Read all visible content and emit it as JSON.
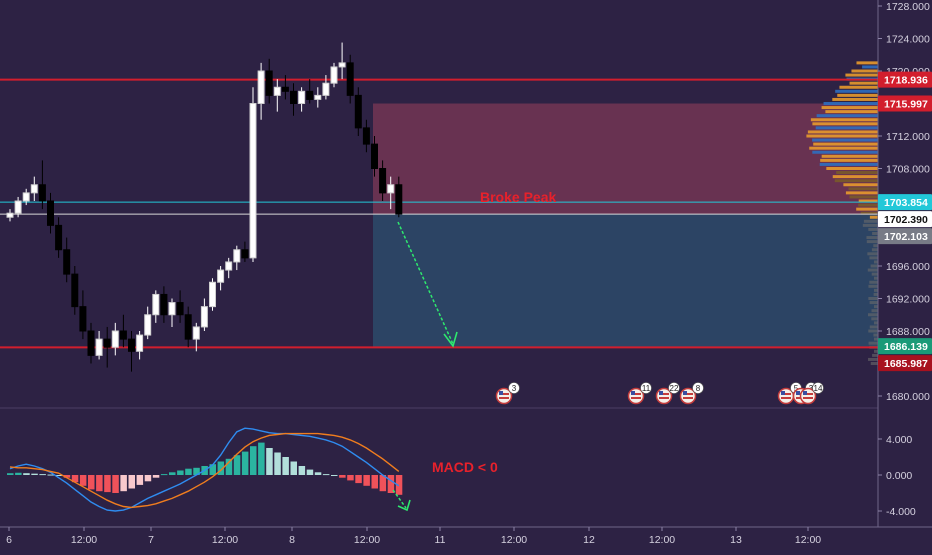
{
  "colors": {
    "background": "#2d2244",
    "up": "#ffffff",
    "down": "#000000",
    "red_line": "#d21e2d",
    "cyan_line": "#22c8d8",
    "sell_zone": "#6b3452",
    "target_zone": "#2c4766",
    "arrow": "#2ee86e",
    "annotation": "#e8212b",
    "macd_line": "#2f8cf0",
    "signal_line": "#f07d1e",
    "hist_pos_strong": "#2bb4a0",
    "hist_pos_weak": "#b2dfdb",
    "hist_neg_strong": "#f0525a",
    "hist_neg_weak": "#f8c8cc",
    "volume_buy": "#2f6ec0",
    "volume_sell": "#e89a2c",
    "volume_dim": "#6a6a6a"
  },
  "chart_data": [
    {
      "type": "candlestick",
      "panel": "price",
      "y_axis_ticks": [
        "1728.000",
        "1724.000",
        "1720.000",
        "1716.000",
        "1712.000",
        "1708.000",
        "1704.000",
        "1700.000",
        "1696.000",
        "1692.000",
        "1688.000",
        "1684.000",
        "1680.000"
      ],
      "ylim": [
        1678.8,
        1728.8
      ],
      "x_axis_ticks": [
        "6",
        "12:00",
        "7",
        "12:00",
        "8",
        "12:00",
        "11",
        "12:00",
        "12",
        "12:00",
        "13",
        "12:00"
      ],
      "price_labels": [
        {
          "value": 1718.936,
          "text": "1718.936",
          "color": "#d21e2d"
        },
        {
          "value": 1715.997,
          "text": "1715.997",
          "color": "#d21e2d"
        },
        {
          "value": 1703.854,
          "text": "1703.854",
          "color": "#22c8d8"
        },
        {
          "value": 1702.39,
          "text": "1702.390",
          "color": "#ffffff"
        },
        {
          "value": 1702.103,
          "text": "1702.103",
          "color": "#787b86"
        },
        {
          "value": 1686.139,
          "text": "1686.139",
          "color": "#1a9a78"
        },
        {
          "value": 1685.987,
          "text": "1685.987",
          "color": "#a8111f"
        }
      ],
      "horizontal_lines": [
        1718.936,
        1703.854,
        1702.39,
        1685.987
      ],
      "zones": {
        "sell_zone": [
          1702.39,
          1715.997
        ],
        "target_zone": [
          1685.987,
          1702.39
        ]
      },
      "annotation": "Broke Peak",
      "target_price": 1686.139,
      "candles": [
        [
          1702.0,
          1703.0,
          1701.5,
          1702.5
        ],
        [
          1702.5,
          1704.5,
          1702.0,
          1704.0
        ],
        [
          1704.0,
          1705.5,
          1703.5,
          1705.0
        ],
        [
          1705.0,
          1707.0,
          1704.0,
          1706.0
        ],
        [
          1706.0,
          1709.0,
          1703.0,
          1704.0
        ],
        [
          1704.0,
          1705.0,
          1700.0,
          1701.0
        ],
        [
          1701.0,
          1702.0,
          1697.0,
          1698.0
        ],
        [
          1698.0,
          1699.5,
          1694.0,
          1695.0
        ],
        [
          1695.0,
          1696.0,
          1690.0,
          1691.0
        ],
        [
          1691.0,
          1693.0,
          1687.0,
          1688.0
        ],
        [
          1688.0,
          1689.0,
          1684.0,
          1685.0
        ],
        [
          1685.0,
          1688.0,
          1684.5,
          1687.0
        ],
        [
          1687.0,
          1688.5,
          1683.5,
          1686.0
        ],
        [
          1686.0,
          1689.0,
          1685.0,
          1688.0
        ],
        [
          1688.0,
          1690.0,
          1686.0,
          1687.0
        ],
        [
          1687.0,
          1688.0,
          1683.0,
          1685.5
        ],
        [
          1685.5,
          1688.0,
          1684.5,
          1687.5
        ],
        [
          1687.5,
          1691.0,
          1687.0,
          1690.0
        ],
        [
          1690.0,
          1693.0,
          1689.0,
          1692.5
        ],
        [
          1692.5,
          1693.5,
          1689.0,
          1690.0
        ],
        [
          1690.0,
          1692.0,
          1688.5,
          1691.5
        ],
        [
          1691.5,
          1693.0,
          1689.0,
          1690.0
        ],
        [
          1690.0,
          1691.0,
          1686.0,
          1687.0
        ],
        [
          1687.0,
          1689.0,
          1685.5,
          1688.5
        ],
        [
          1688.5,
          1692.0,
          1688.0,
          1691.0
        ],
        [
          1691.0,
          1694.5,
          1690.5,
          1694.0
        ],
        [
          1694.0,
          1696.0,
          1693.0,
          1695.5
        ],
        [
          1695.5,
          1697.0,
          1694.5,
          1696.5
        ],
        [
          1696.5,
          1698.5,
          1695.5,
          1698.0
        ],
        [
          1698.0,
          1699.0,
          1696.5,
          1697.0
        ],
        [
          1697.0,
          1718.0,
          1696.5,
          1716.0
        ],
        [
          1716.0,
          1721.0,
          1714.0,
          1720.0
        ],
        [
          1720.0,
          1721.5,
          1716.0,
          1717.0
        ],
        [
          1717.0,
          1719.0,
          1715.0,
          1718.0
        ],
        [
          1718.0,
          1719.5,
          1716.5,
          1717.5
        ],
        [
          1717.5,
          1718.5,
          1714.5,
          1716.0
        ],
        [
          1716.0,
          1718.0,
          1715.0,
          1717.5
        ],
        [
          1717.5,
          1719.0,
          1716.0,
          1716.5
        ],
        [
          1716.5,
          1718.0,
          1715.5,
          1717.0
        ],
        [
          1717.0,
          1719.5,
          1716.5,
          1718.5
        ],
        [
          1718.5,
          1721.0,
          1718.0,
          1720.5
        ],
        [
          1720.5,
          1723.5,
          1719.0,
          1721.0
        ],
        [
          1721.0,
          1722.0,
          1716.0,
          1717.0
        ],
        [
          1717.0,
          1718.0,
          1712.0,
          1713.0
        ],
        [
          1713.0,
          1714.0,
          1710.0,
          1711.0
        ],
        [
          1711.0,
          1712.0,
          1707.0,
          1708.0
        ],
        [
          1708.0,
          1709.0,
          1704.0,
          1705.0
        ],
        [
          1705.0,
          1707.0,
          1703.0,
          1706.0
        ],
        [
          1706.0,
          1707.0,
          1702.0,
          1702.4
        ]
      ]
    },
    {
      "type": "macd",
      "panel": "indicator",
      "y_axis_ticks": [
        "4.000",
        "0.000",
        "-4.000"
      ],
      "ylim": [
        -5.0,
        6.5
      ],
      "annotation": "MACD < 0",
      "histogram": [
        0.2,
        0.25,
        0.2,
        0.15,
        0.1,
        0.05,
        0.0,
        -0.3,
        -0.8,
        -1.2,
        -1.6,
        -1.8,
        -1.9,
        -2.0,
        -1.8,
        -1.5,
        -1.1,
        -0.7,
        -0.3,
        0.1,
        0.3,
        0.5,
        0.7,
        0.8,
        1.0,
        1.2,
        1.5,
        1.8,
        2.2,
        2.6,
        3.2,
        3.6,
        3.0,
        2.5,
        2.0,
        1.5,
        1.0,
        0.6,
        0.3,
        0.1,
        0.0,
        -0.3,
        -0.6,
        -0.9,
        -1.2,
        -1.5,
        -1.8,
        -2.0,
        -2.2
      ],
      "macd_line": [
        0.7,
        1.0,
        1.2,
        1.0,
        0.7,
        0.3,
        -0.3,
        -0.9,
        -1.6,
        -2.3,
        -3.0,
        -3.5,
        -3.9,
        -4.0,
        -3.9,
        -3.6,
        -3.1,
        -2.6,
        -2.2,
        -1.8,
        -1.4,
        -1.0,
        -0.5,
        0.0,
        0.5,
        1.1,
        2.2,
        3.6,
        4.8,
        5.2,
        5.1,
        4.9,
        4.7,
        4.6,
        4.6,
        4.5,
        4.4,
        4.3,
        4.1,
        3.9,
        3.6,
        3.2,
        2.6,
        2.0,
        1.4,
        0.7,
        0.0,
        -0.6,
        -1.2
      ],
      "signal_line": [
        0.9,
        0.8,
        0.8,
        0.7,
        0.6,
        0.4,
        0.2,
        -0.3,
        -0.8,
        -1.3,
        -1.8,
        -2.3,
        -2.8,
        -3.2,
        -3.5,
        -3.6,
        -3.5,
        -3.4,
        -3.2,
        -2.9,
        -2.6,
        -2.2,
        -1.8,
        -1.3,
        -0.8,
        -0.2,
        0.5,
        1.4,
        2.3,
        3.1,
        3.7,
        4.1,
        4.4,
        4.5,
        4.6,
        4.6,
        4.6,
        4.6,
        4.6,
        4.5,
        4.4,
        4.2,
        3.9,
        3.5,
        3.0,
        2.4,
        1.8,
        1.1,
        0.4
      ]
    }
  ],
  "event_badges": [
    {
      "count": "3"
    },
    {
      "count": "11"
    },
    {
      "count": "22"
    },
    {
      "count": "8"
    },
    {
      "count": "5"
    },
    {
      "count": "3"
    },
    {
      "count": "14"
    }
  ]
}
